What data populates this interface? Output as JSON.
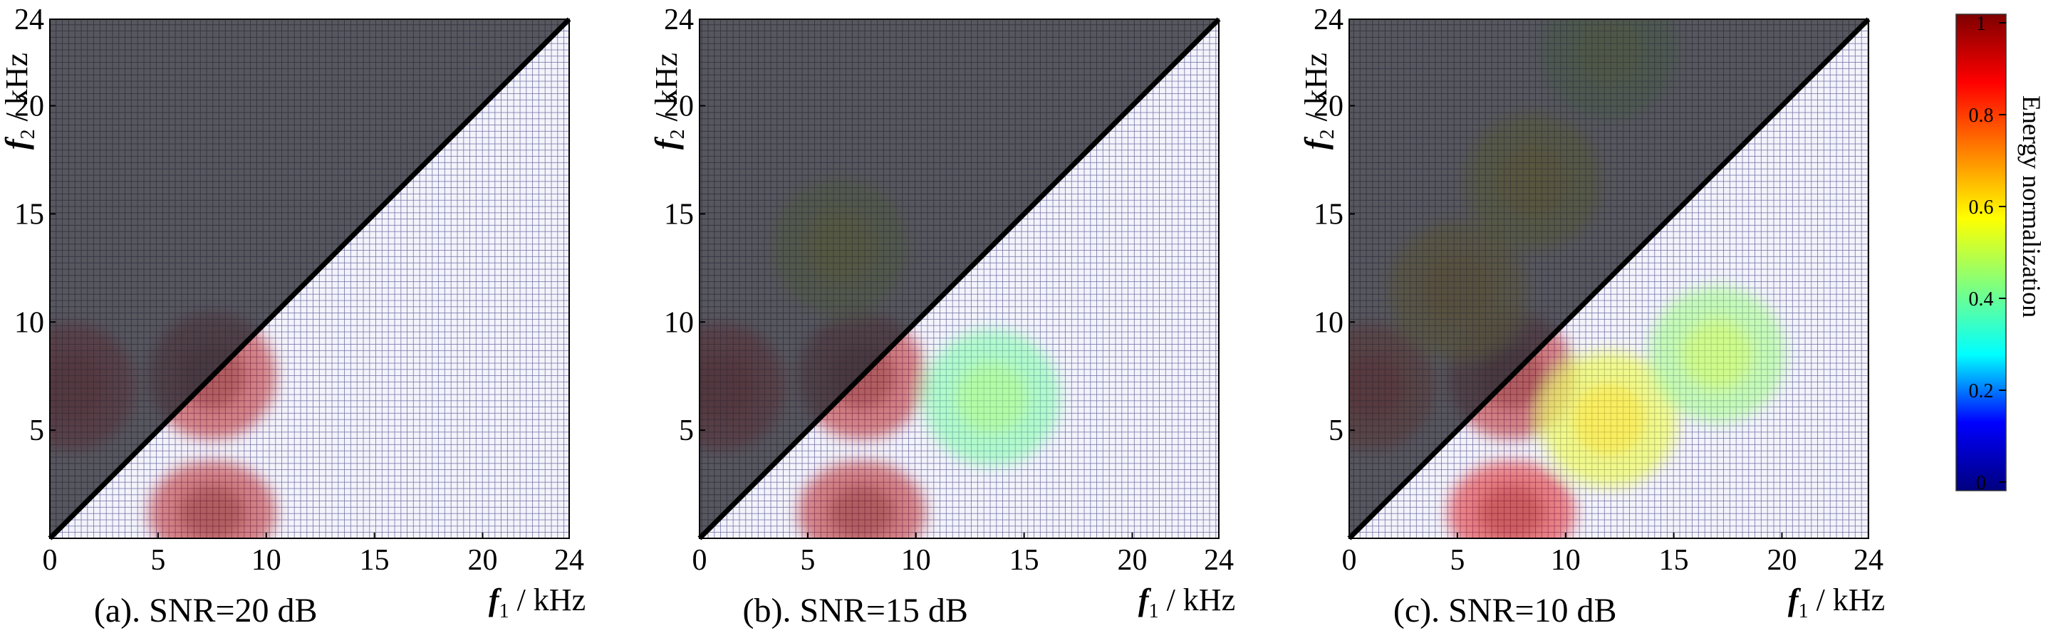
{
  "chart_data": [
    {
      "type": "heatmap",
      "caption": "(a). SNR=20 dB",
      "xlabel": "f1 / kHz",
      "ylabel": "f2 / kHz",
      "xlim": [
        0,
        24
      ],
      "ylim": [
        0,
        24
      ],
      "x_ticks": [
        "0",
        "5",
        "10",
        "15",
        "20",
        "24"
      ],
      "y_ticks": [
        "5",
        "10",
        "15",
        "20",
        "24"
      ],
      "diagonal": "f2 = f1, region above diagonal shaded",
      "blobs": [
        {
          "x": 1,
          "y": 7,
          "value": 0.85
        },
        {
          "x": 7.5,
          "y": 7.5,
          "value": 0.95
        },
        {
          "x": 7.5,
          "y": 1.2,
          "value": 0.95
        }
      ]
    },
    {
      "type": "heatmap",
      "caption": "(b). SNR=15 dB",
      "xlabel": "f1 / kHz",
      "ylabel": "f2 / kHz",
      "xlim": [
        0,
        24
      ],
      "ylim": [
        0,
        24
      ],
      "x_ticks": [
        "0",
        "5",
        "10",
        "15",
        "20",
        "24"
      ],
      "y_ticks": [
        "5",
        "10",
        "15",
        "20",
        "24"
      ],
      "diagonal": "f2 = f1, region above diagonal shaded",
      "blobs": [
        {
          "x": 1,
          "y": 7,
          "value": 0.85
        },
        {
          "x": 7.5,
          "y": 7.5,
          "value": 0.95
        },
        {
          "x": 7.5,
          "y": 1.2,
          "value": 0.95
        },
        {
          "x": 13.5,
          "y": 6.5,
          "value": 0.4
        },
        {
          "x": 6.5,
          "y": 13.5,
          "value": 0.5
        }
      ]
    },
    {
      "type": "heatmap",
      "caption": "(c). SNR=10 dB",
      "xlabel": "f1 / kHz",
      "ylabel": "f2 / kHz",
      "xlim": [
        0,
        24
      ],
      "ylim": [
        0,
        24
      ],
      "x_ticks": [
        "0",
        "5",
        "10",
        "15",
        "20",
        "24"
      ],
      "y_ticks": [
        "5",
        "10",
        "15",
        "20",
        "24"
      ],
      "diagonal": "f2 = f1, region above diagonal shaded",
      "blobs": [
        {
          "x": 1,
          "y": 7,
          "value": 0.8
        },
        {
          "x": 7.5,
          "y": 7.5,
          "value": 0.95
        },
        {
          "x": 7.5,
          "y": 1.2,
          "value": 0.9
        },
        {
          "x": 12,
          "y": 5.5,
          "value": 0.55
        },
        {
          "x": 17,
          "y": 8.5,
          "value": 0.45
        },
        {
          "x": 8.5,
          "y": 16.5,
          "value": 0.55
        },
        {
          "x": 5,
          "y": 11.5,
          "value": 0.6
        },
        {
          "x": 12,
          "y": 22.5,
          "value": 0.45
        }
      ]
    }
  ],
  "colorbar": {
    "title": "Energy normalization",
    "ticks": [
      "0",
      "0.2",
      "0.4",
      "0.6",
      "0.8",
      "1"
    ],
    "range": [
      0,
      1
    ],
    "colormap": "jet",
    "colors": [
      "#00007f",
      "#0000ff",
      "#00ffff",
      "#7fff7f",
      "#ffff00",
      "#ff7f00",
      "#ff0000",
      "#7f0000"
    ]
  }
}
